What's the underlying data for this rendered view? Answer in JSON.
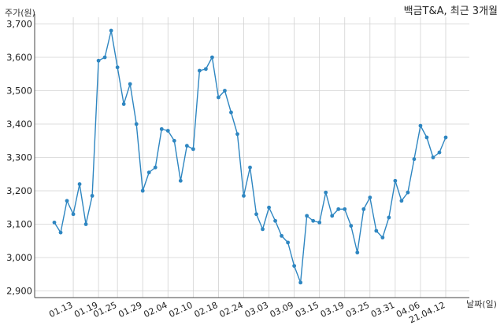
{
  "chart_data": {
    "type": "line",
    "title": "백금T&A, 최근 3개월",
    "ylabel": "주가(원)",
    "xlabel": "날짜(일)",
    "ylim": [
      2880,
      3720
    ],
    "yticks": [
      2900,
      3000,
      3100,
      3200,
      3300,
      3400,
      3500,
      3600,
      3700
    ],
    "ytick_labels": [
      "2,900",
      "3,000",
      "3,100",
      "3,200",
      "3,300",
      "3,400",
      "3,500",
      "3,600",
      "3,700"
    ],
    "xticks": [
      {
        "index": 3,
        "label": "01.13"
      },
      {
        "index": 7,
        "label": "01.19"
      },
      {
        "index": 10,
        "label": "01.25"
      },
      {
        "index": 14,
        "label": "01.29"
      },
      {
        "index": 18,
        "label": "02.04"
      },
      {
        "index": 22,
        "label": "02.10"
      },
      {
        "index": 26,
        "label": "02.18"
      },
      {
        "index": 30,
        "label": "02.24"
      },
      {
        "index": 34,
        "label": "03.03"
      },
      {
        "index": 38,
        "label": "03.09"
      },
      {
        "index": 42,
        "label": "03.15"
      },
      {
        "index": 46,
        "label": "03.19"
      },
      {
        "index": 50,
        "label": "03.25"
      },
      {
        "index": 54,
        "label": "03.31"
      },
      {
        "index": 58,
        "label": "04.06"
      },
      {
        "index": 62,
        "label": "21.04.12"
      }
    ],
    "grid": true,
    "color": "#2e86c1",
    "series": [
      {
        "values": [
          3105,
          3075,
          3170,
          3130,
          3220,
          3100,
          3185,
          3590,
          3600,
          3680,
          3570,
          3460,
          3520,
          3400,
          3200,
          3255,
          3270,
          3385,
          3380,
          3350,
          3230,
          3335,
          3325,
          3560,
          3565,
          3600,
          3480,
          3500,
          3435,
          3370,
          3185,
          3270,
          3130,
          3085,
          3150,
          3110,
          3065,
          3045,
          2975,
          2925,
          3125,
          3110,
          3105,
          3195,
          3125,
          3145,
          3145,
          3095,
          3015,
          3145,
          3180,
          3080,
          3060,
          3120,
          3230,
          3170,
          3195,
          3295,
          3395,
          3360,
          3300,
          3315,
          3360
        ]
      }
    ]
  }
}
